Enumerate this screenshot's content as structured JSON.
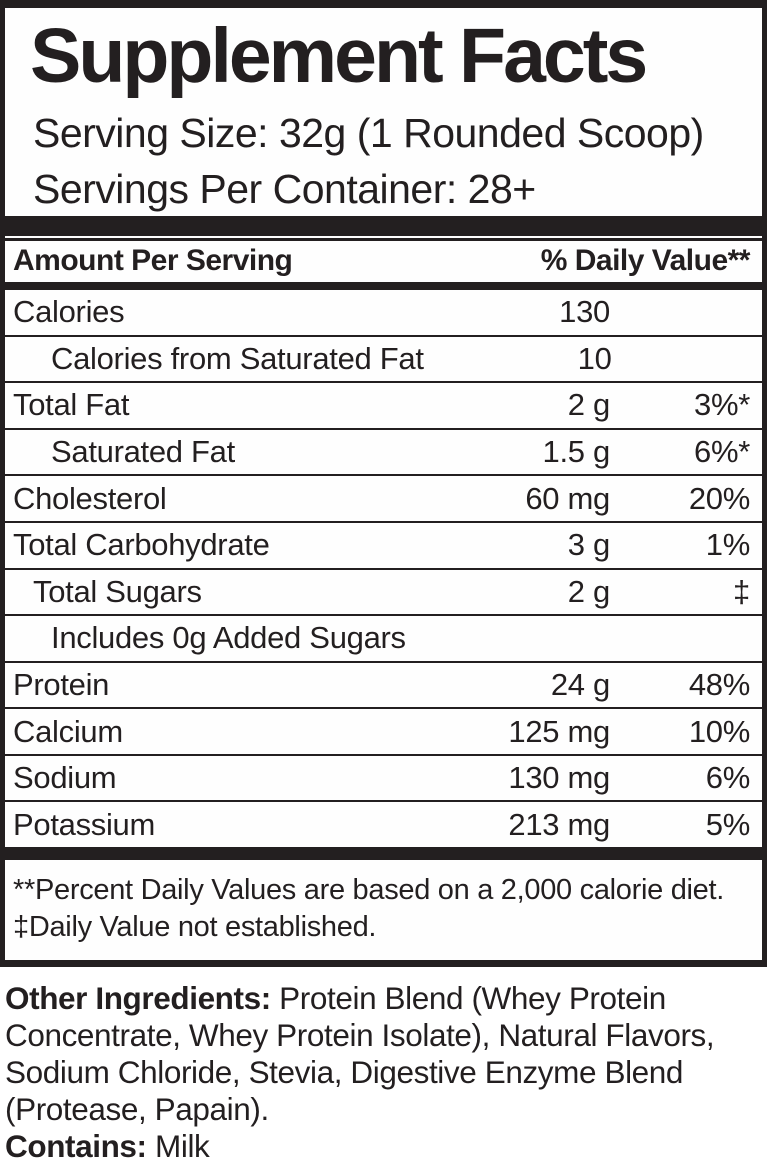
{
  "label": {
    "title": "Supplement Facts",
    "serving_size": "Serving Size: 32g (1 Rounded Scoop)",
    "servings_per_container": "Servings Per Container: 28+",
    "header": {
      "amount_per_serving": "Amount Per Serving",
      "daily_value": "% Daily Value**"
    },
    "rows": [
      {
        "name": "Calories",
        "amount": "130",
        "dv": ""
      },
      {
        "name": "Calories from Saturated Fat",
        "amount": "10",
        "dv": ""
      },
      {
        "name": "Total Fat",
        "amount": "2 g",
        "dv": "3%*"
      },
      {
        "name": "Saturated Fat",
        "amount": "1.5 g",
        "dv": "6%*"
      },
      {
        "name": "Cholesterol",
        "amount": "60 mg",
        "dv": "20%"
      },
      {
        "name": "Total Carbohydrate",
        "amount": "3 g",
        "dv": "1%"
      },
      {
        "name": "Total Sugars",
        "amount": "2 g",
        "dv": "‡"
      },
      {
        "name": "Includes 0g Added Sugars",
        "amount": "",
        "dv": ""
      },
      {
        "name": "Protein",
        "amount": "24 g",
        "dv": "48%"
      },
      {
        "name": "Calcium",
        "amount": "125 mg",
        "dv": "10%"
      },
      {
        "name": "Sodium",
        "amount": "130 mg",
        "dv": "6%"
      },
      {
        "name": "Potassium",
        "amount": "213 mg",
        "dv": "5%"
      }
    ],
    "footnotes": [
      "**Percent Daily Values are based on a 2,000 calorie diet.",
      "‡Daily Value not established."
    ],
    "other_ingredients_label": "Other Ingredients:",
    "other_ingredients_text": " Protein Blend (Whey Protein Concentrate, Whey Protein Isolate), Natural Flavors, Sodium Chloride, Stevia, Digestive Enzyme Blend (Protease, Papain).",
    "contains_label": "Contains:",
    "contains_value": " Milk"
  },
  "colors": {
    "text": "#231f20",
    "rule": "#231f20",
    "background": "#ffffff"
  }
}
